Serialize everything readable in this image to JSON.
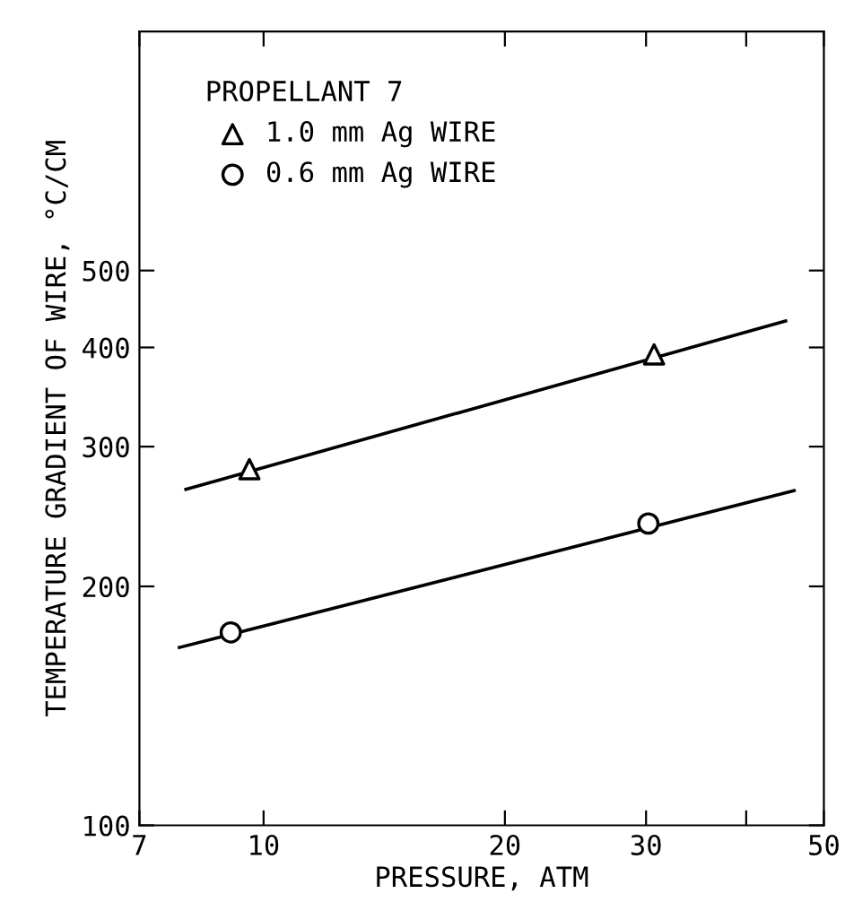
{
  "chart_data": {
    "type": "scatter",
    "xlabel": "PRESSURE, ATM",
    "ylabel": "TEMPERATURE GRADIENT OF WIRE, °C/CM",
    "legend_title": "PROPELLANT 7",
    "log": "xy",
    "xlim": [
      7,
      50
    ],
    "ylim": [
      100,
      1000
    ],
    "xticks": [
      7,
      10,
      20,
      30,
      {
        "value": 40,
        "label": null
      },
      50
    ],
    "yticks": [
      100,
      200,
      300,
      400,
      500
    ],
    "grid": false,
    "legend": "top left",
    "series": [
      {
        "name": "1.0 mm Ag WIRE",
        "marker": "triangle",
        "color": "#000000",
        "x": [
          9.6,
          30.7
        ],
        "values": [
          281,
          392
        ]
      },
      {
        "name": "0.6 mm Ag WIRE",
        "marker": "circle",
        "color": "#000000",
        "x": [
          9.1,
          30.2
        ],
        "values": [
          175,
          240
        ]
      },
      {
        "type": "line",
        "color": "#000000",
        "x": [
          8.0,
          44.8
        ],
        "values": [
          265,
          432
        ]
      },
      {
        "type": "line",
        "color": "#000000",
        "x": [
          7.85,
          45.9
        ],
        "values": [
          167.5,
          264
        ]
      }
    ]
  }
}
